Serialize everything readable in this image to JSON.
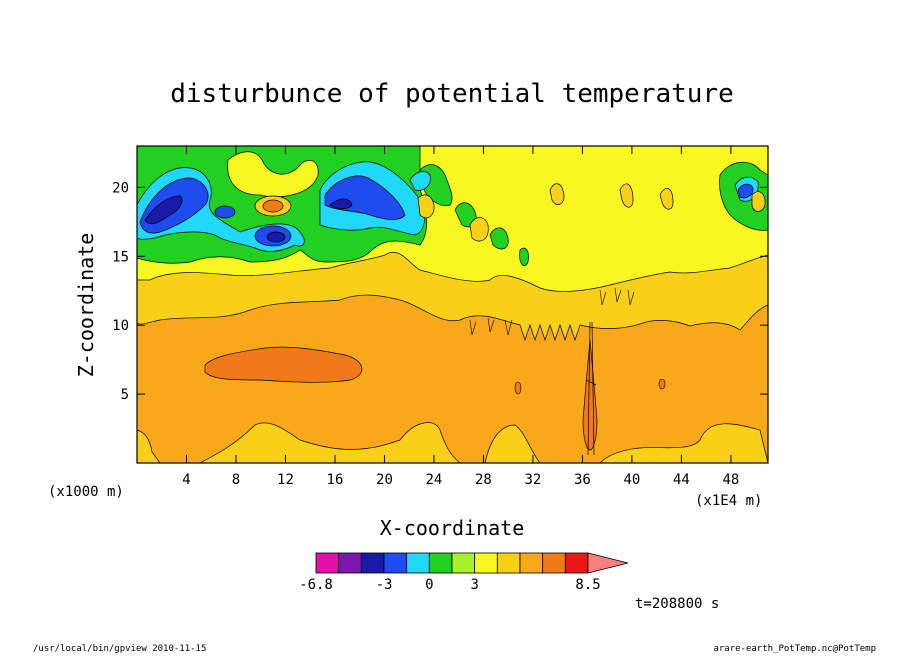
{
  "chart_data": {
    "type": "heatmap",
    "title": "disturbunce of potential temperature",
    "xlabel": "X-coordinate",
    "ylabel": "Z-coordinate",
    "x_scale_note": "(x1E4 m)",
    "y_scale_note": "(x1000 m)",
    "xlim": [
      0,
      51
    ],
    "ylim": [
      0,
      23
    ],
    "x_ticks": [
      4,
      8,
      12,
      16,
      20,
      24,
      28,
      32,
      36,
      40,
      44,
      48
    ],
    "y_ticks": [
      5,
      10,
      15,
      20
    ],
    "time_label": "t=208800 s",
    "colorbar": {
      "colors": [
        "#e010a8",
        "#7a18b0",
        "#1a1aa8",
        "#1e4cf0",
        "#22d8f8",
        "#22d022",
        "#a8f030",
        "#f8f820",
        "#f8d018",
        "#f8a818",
        "#f07a18",
        "#e81818",
        "#f88080"
      ],
      "labels": [
        {
          "text": "-6.8",
          "boundary": 0
        },
        {
          "text": "-3",
          "boundary": 3
        },
        {
          "text": "0",
          "boundary": 5
        },
        {
          "text": "3",
          "boundary": 7
        },
        {
          "text": "8.5",
          "boundary": 11
        }
      ],
      "extend": "max"
    },
    "regions": [
      {
        "name": "base",
        "color": "#f8a818"
      },
      {
        "name": "lower-patches",
        "color": "#f8d018"
      },
      {
        "name": "mid-level",
        "color": "#f8d018"
      },
      {
        "name": "upper-stable",
        "color": "#f8f820"
      },
      {
        "name": "upper-left",
        "color": "#22d022"
      },
      {
        "name": "warm-core",
        "color": "#f07a18"
      }
    ]
  },
  "footer": {
    "left": "/usr/local/bin/gpview   2010-11-15",
    "right": "arare-earth_PotTemp.nc@PotTemp"
  }
}
